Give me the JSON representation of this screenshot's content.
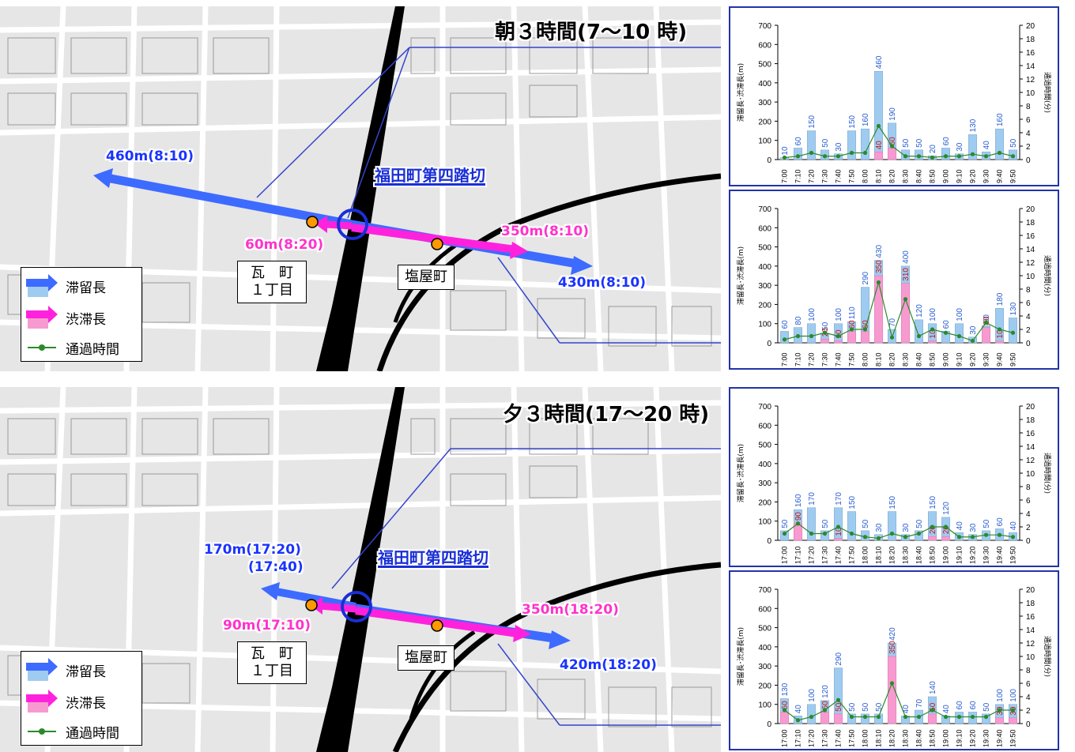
{
  "panels": [
    {
      "title": "朝３時間(7～10 時)",
      "crossing": "福田町第四踏切",
      "town_a": [
        "瓦　町",
        "１丁目"
      ],
      "town_b": "塩屋町",
      "labels": {
        "west_stay": "460m(8:10)",
        "west_jam": "60m(8:20)",
        "east_jam": "350m(8:10)",
        "east_stay": "430m(8:10)"
      }
    },
    {
      "title": "夕３時間(17～20 時)",
      "crossing": "福田町第四踏切",
      "town_a": [
        "瓦　町",
        "１丁目"
      ],
      "town_b": "塩屋町",
      "labels": {
        "west_stay": "170m(17:20)",
        "west_stay2": "(17:40)",
        "west_jam": "90m(17:10)",
        "east_jam": "350m(18:20)",
        "east_stay": "420m(18:20)"
      }
    }
  ],
  "legend": {
    "stay": "滞留長",
    "jam": "渋滞長",
    "time": "通過時間"
  },
  "colors": {
    "stay_arrow": "#3d6bff",
    "jam_arrow": "#ff22dd",
    "stay_bar": "#9fcbf0",
    "jam_bar": "#f79ad0",
    "time_line": "#2a8a2a"
  },
  "chart_data": [
    {
      "type": "bar",
      "ylabel": "滞留長･渋滞長(m)",
      "y2label": "通過時間(分)",
      "ylim": [
        0,
        700
      ],
      "y2lim": [
        0,
        20
      ],
      "yticks": [
        "0",
        "100",
        "200",
        "300",
        "400",
        "500",
        "600",
        "700"
      ],
      "y2ticks": [
        "0",
        "2",
        "4",
        "6",
        "8",
        "10",
        "12",
        "14",
        "16",
        "18",
        "20"
      ],
      "categories": [
        "7:00",
        "7:10",
        "7:20",
        "7:30",
        "7:40",
        "7:50",
        "8:00",
        "8:10",
        "8:20",
        "8:30",
        "8:40",
        "8:50",
        "9:00",
        "9:10",
        "9:20",
        "9:30",
        "9:40",
        "9:50"
      ],
      "series": [
        {
          "name": "滞留長",
          "values": [
            10,
            60,
            150,
            50,
            30,
            150,
            160,
            460,
            190,
            50,
            50,
            20,
            60,
            30,
            130,
            40,
            160,
            50
          ]
        },
        {
          "name": "渋滞長",
          "values": [
            0,
            0,
            0,
            0,
            0,
            0,
            0,
            40,
            60,
            0,
            0,
            0,
            0,
            0,
            0,
            0,
            0,
            0
          ]
        },
        {
          "name": "通過時間",
          "values": [
            0.3,
            0.5,
            1.0,
            0.5,
            0.5,
            1.0,
            1.0,
            5.0,
            2.0,
            0.5,
            0.5,
            0.3,
            0.5,
            0.5,
            0.8,
            0.5,
            1.0,
            0.5
          ]
        }
      ],
      "jam_labels": [
        "",
        "",
        "",
        "",
        "",
        "",
        "",
        "40",
        "60",
        "",
        "",
        "",
        "",
        "",
        "",
        "",
        "",
        ""
      ]
    },
    {
      "type": "bar",
      "ylabel": "滞留長･渋滞長(m)",
      "y2label": "通過時間(分)",
      "ylim": [
        0,
        700
      ],
      "y2lim": [
        0,
        20
      ],
      "yticks": [
        "0",
        "100",
        "200",
        "300",
        "400",
        "500",
        "600",
        "700"
      ],
      "y2ticks": [
        "0",
        "2",
        "4",
        "6",
        "8",
        "10",
        "12",
        "14",
        "16",
        "18",
        "20"
      ],
      "categories": [
        "7:00",
        "7:10",
        "7:20",
        "7:30",
        "7:40",
        "7:50",
        "8:00",
        "8:10",
        "8:20",
        "8:30",
        "8:40",
        "8:50",
        "9:00",
        "9:10",
        "9:20",
        "9:30",
        "9:40",
        "9:50"
      ],
      "series": [
        {
          "name": "滞留長",
          "values": [
            60,
            80,
            100,
            50,
            100,
            110,
            290,
            430,
            70,
            400,
            120,
            100,
            60,
            100,
            30,
            90,
            180,
            130
          ]
        },
        {
          "name": "渋滞長",
          "values": [
            0,
            0,
            0,
            20,
            10,
            60,
            60,
            350,
            0,
            310,
            0,
            10,
            0,
            0,
            0,
            80,
            10,
            0
          ]
        },
        {
          "name": "通過時間",
          "values": [
            0.5,
            1.0,
            1.0,
            1.5,
            1.0,
            2.0,
            2.0,
            9.0,
            0.8,
            6.5,
            1.0,
            2.0,
            1.5,
            1.0,
            0.3,
            3.0,
            2.0,
            1.5
          ]
        }
      ],
      "jam_labels": [
        "",
        "",
        "",
        "20",
        "10",
        "60",
        "60",
        "350",
        "",
        "310",
        "",
        "10",
        "",
        "",
        "",
        "80",
        "10",
        ""
      ]
    },
    {
      "type": "bar",
      "ylabel": "滞留長･渋滞長(m)",
      "y2label": "通過時間(分)",
      "ylim": [
        0,
        700
      ],
      "y2lim": [
        0,
        20
      ],
      "yticks": [
        "0",
        "100",
        "200",
        "300",
        "400",
        "500",
        "600",
        "700"
      ],
      "y2ticks": [
        "0",
        "2",
        "4",
        "6",
        "8",
        "10",
        "12",
        "14",
        "16",
        "18",
        "20"
      ],
      "categories": [
        "17:00",
        "17:10",
        "17:20",
        "17:30",
        "17:40",
        "17:50",
        "18:00",
        "18:10",
        "18:20",
        "18:30",
        "18:40",
        "18:50",
        "19:00",
        "19:10",
        "19:20",
        "19:30",
        "19:40",
        "19:50"
      ],
      "series": [
        {
          "name": "滞留長",
          "values": [
            50,
            160,
            170,
            50,
            170,
            150,
            50,
            30,
            150,
            30,
            50,
            150,
            120,
            40,
            30,
            50,
            60,
            40
          ]
        },
        {
          "name": "渋滞長",
          "values": [
            0,
            90,
            0,
            0,
            10,
            0,
            0,
            0,
            0,
            0,
            0,
            20,
            20,
            0,
            0,
            0,
            0,
            0
          ]
        },
        {
          "name": "通過時間",
          "values": [
            1.0,
            2.5,
            1.0,
            1.0,
            2.0,
            1.0,
            0.5,
            0.3,
            1.0,
            0.5,
            1.0,
            2.0,
            2.0,
            0.5,
            0.5,
            0.8,
            0.8,
            0.5
          ]
        }
      ],
      "jam_labels": [
        "",
        "90",
        "",
        "",
        "10",
        "",
        "",
        "",
        "",
        "",
        "",
        "20",
        "20",
        "",
        "",
        "",
        "",
        ""
      ]
    },
    {
      "type": "bar",
      "ylabel": "滞留長･渋滞長(m)",
      "y2label": "通過時間(分)",
      "ylim": [
        0,
        700
      ],
      "y2lim": [
        0,
        20
      ],
      "yticks": [
        "0",
        "100",
        "200",
        "300",
        "400",
        "500",
        "600",
        "700"
      ],
      "y2ticks": [
        "0",
        "2",
        "4",
        "6",
        "8",
        "10",
        "12",
        "14",
        "16",
        "18",
        "20"
      ],
      "categories": [
        "17:00",
        "17:10",
        "17:20",
        "17:30",
        "17:40",
        "17:50",
        "18:00",
        "18:10",
        "18:20",
        "18:30",
        "18:40",
        "18:50",
        "19:00",
        "19:10",
        "19:20",
        "19:30",
        "19:40",
        "19:50"
      ],
      "series": [
        {
          "name": "滞留長",
          "values": [
            130,
            40,
            100,
            120,
            290,
            50,
            50,
            50,
            420,
            40,
            70,
            140,
            40,
            60,
            60,
            50,
            100,
            100
          ]
        },
        {
          "name": "渋滞長",
          "values": [
            60,
            0,
            0,
            60,
            50,
            0,
            0,
            0,
            350,
            0,
            0,
            50,
            0,
            0,
            0,
            0,
            30,
            30
          ]
        },
        {
          "name": "通過時間",
          "values": [
            2.0,
            0.5,
            1.0,
            2.0,
            3.5,
            1.0,
            1.0,
            1.0,
            6.0,
            1.0,
            1.0,
            2.0,
            1.0,
            1.0,
            1.0,
            1.0,
            2.0,
            2.0
          ]
        }
      ],
      "jam_labels": [
        "60",
        "",
        "",
        "60",
        "50",
        "",
        "",
        "",
        "350",
        "",
        "",
        "50",
        "",
        "",
        "",
        "",
        "30",
        "30"
      ]
    }
  ]
}
